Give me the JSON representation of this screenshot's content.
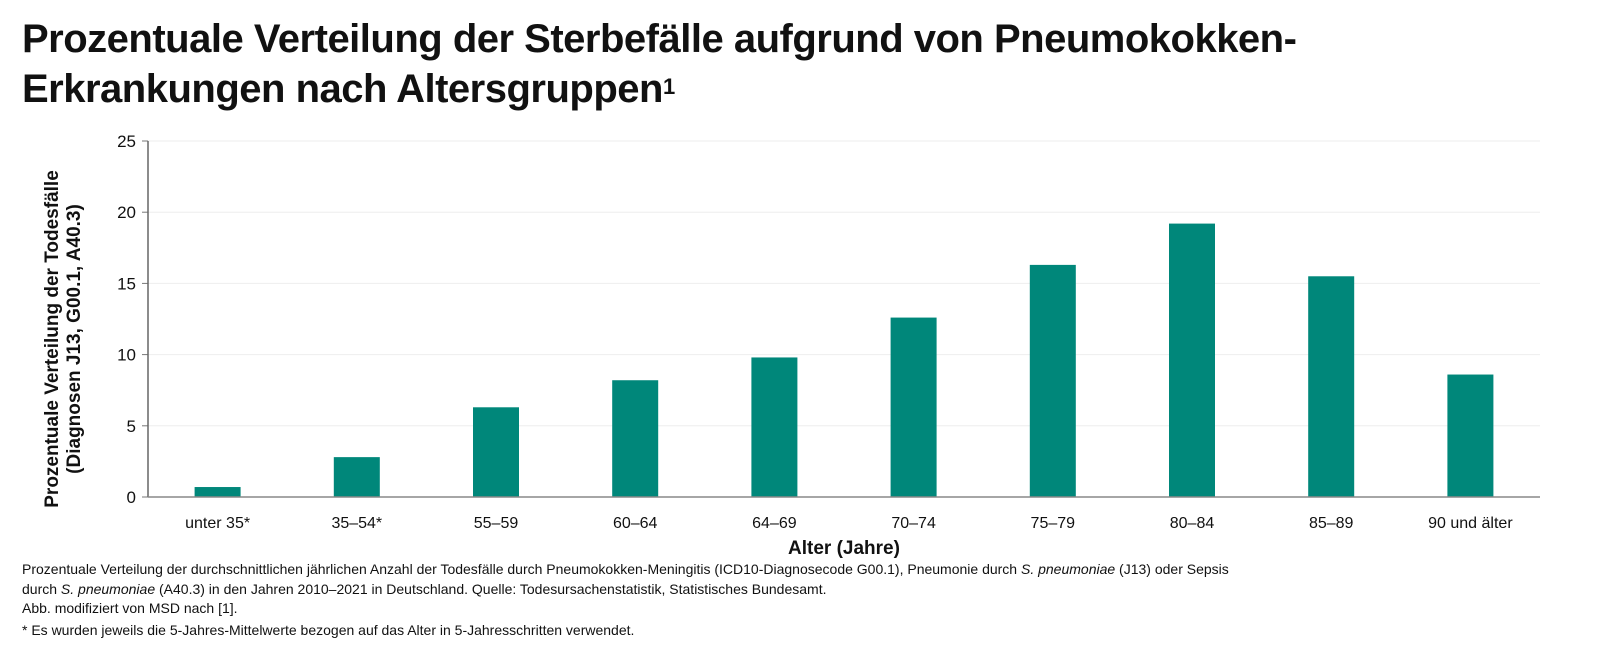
{
  "title": "Prozentuale Verteilung der Sterbefälle aufgrund von Pneumokokken-Erkrankungen nach Altersgruppen",
  "title_sup": "1",
  "chart_data": {
    "type": "bar",
    "categories": [
      "unter 35*",
      "35–54*",
      "55–59",
      "60–64",
      "64–69",
      "70–74",
      "75–79",
      "80–84",
      "85–89",
      "90 und älter"
    ],
    "values": [
      0.7,
      2.8,
      6.3,
      8.2,
      9.8,
      12.6,
      16.3,
      19.2,
      15.5,
      8.6
    ],
    "xlabel": "Alter (Jahre)",
    "ylabel_line1": "Prozentuale Verteilung der Todesfälle",
    "ylabel_line2": "(Diagnosen J13, G00.1, A40.3)",
    "ylim": [
      0,
      25
    ],
    "yticks": [
      "0",
      "5",
      "10",
      "15",
      "20",
      "25"
    ],
    "grid": true,
    "bar_color": "#00877a"
  },
  "footnote": {
    "line1": "Prozentuale Verteilung der durchschnittlichen jährlichen Anzahl der Todesfälle durch Pneumokokken-Meningitis (ICD10-Diagnosecode G00.1), Pneumonie durch ",
    "line1_italic": "S. pneumoniae",
    "line1_end": " (J13) oder Sepsis",
    "line2_start": "durch ",
    "line2_italic": "S. pneumoniae",
    "line2_end": " (A40.3) in den Jahren 2010–2021 in Deutschland. Quelle: Todesursachenstatistik, Statistisches Bundesamt.",
    "line3": "Abb. modifiziert von MSD nach [1].",
    "line4": "* Es wurden jeweils die 5-Jahres-Mittelwerte bezogen auf das Alter in 5-Jahresschritten verwendet."
  }
}
